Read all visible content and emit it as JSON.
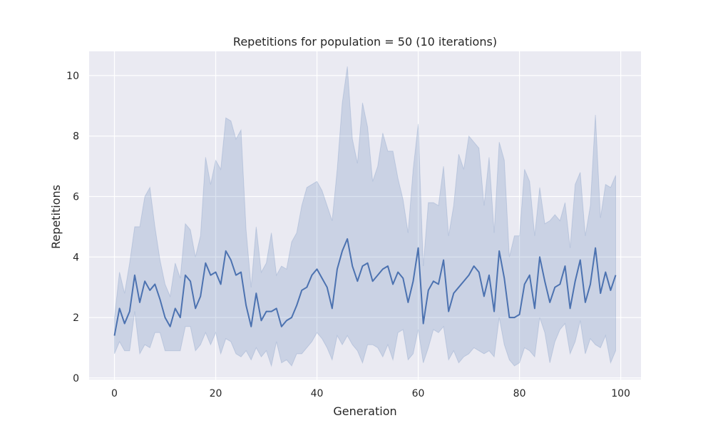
{
  "chart_data": {
    "type": "line",
    "title": "Repetitions for population = 50 (10 iterations)",
    "xlabel": "Generation",
    "ylabel": "Repetitions",
    "xlim": [
      -5,
      104
    ],
    "ylim": [
      -0.05,
      10.8
    ],
    "x_ticks": [
      0,
      20,
      40,
      60,
      80,
      100
    ],
    "y_ticks": [
      0,
      2,
      4,
      6,
      8,
      10
    ],
    "grid": true,
    "colors": {
      "line": "#4c72b0",
      "band": "#4c72b0",
      "background": "#eaeaf2",
      "grid": "#ffffff"
    },
    "series": [
      {
        "x_start": 0,
        "x_step": 1,
        "mean": [
          1.4,
          2.3,
          1.8,
          2.2,
          3.4,
          2.5,
          3.2,
          2.9,
          3.1,
          2.6,
          2.0,
          1.7,
          2.3,
          2.0,
          3.4,
          3.2,
          2.3,
          2.7,
          3.8,
          3.4,
          3.5,
          3.1,
          4.2,
          3.9,
          3.4,
          3.5,
          2.4,
          1.7,
          2.8,
          1.9,
          2.2,
          2.2,
          2.3,
          1.7,
          1.9,
          2.0,
          2.4,
          2.9,
          3.0,
          3.4,
          3.6,
          3.3,
          3.0,
          2.3,
          3.6,
          4.2,
          4.6,
          3.7,
          3.2,
          3.7,
          3.8,
          3.2,
          3.4,
          3.6,
          3.7,
          3.1,
          3.5,
          3.3,
          2.5,
          3.2,
          4.3,
          1.8,
          2.9,
          3.2,
          3.1,
          3.9,
          2.2,
          2.8,
          3.0,
          3.2,
          3.4,
          3.7,
          3.5,
          2.7,
          3.4,
          2.2,
          4.2,
          3.3,
          2.0,
          2.0,
          2.1,
          3.1,
          3.4,
          2.3,
          4.0,
          3.2,
          2.5,
          3.0,
          3.1,
          3.7,
          2.3,
          3.2,
          3.9,
          2.5,
          3.1,
          4.3,
          2.8,
          3.5,
          2.9,
          3.4
        ],
        "upper": [
          2.0,
          3.5,
          2.8,
          3.8,
          5.0,
          5.0,
          6.0,
          6.3,
          5.0,
          3.9,
          3.1,
          2.7,
          3.8,
          3.3,
          5.1,
          4.9,
          4.0,
          4.7,
          7.3,
          6.4,
          7.2,
          6.9,
          8.6,
          8.5,
          7.9,
          8.2,
          4.9,
          3.0,
          5.0,
          3.5,
          3.8,
          4.8,
          3.4,
          3.7,
          3.6,
          4.5,
          4.8,
          5.7,
          6.3,
          6.4,
          6.5,
          6.2,
          5.7,
          5.2,
          6.9,
          9.1,
          10.3,
          7.9,
          7.1,
          9.1,
          8.3,
          6.5,
          7.0,
          8.1,
          7.5,
          7.5,
          6.6,
          5.9,
          4.8,
          6.9,
          8.4,
          3.7,
          5.8,
          5.8,
          5.7,
          7.0,
          4.7,
          5.7,
          7.4,
          6.9,
          8.0,
          7.8,
          7.6,
          5.7,
          7.3,
          4.8,
          7.8,
          7.2,
          4.0,
          4.7,
          4.7,
          6.9,
          6.5,
          4.7,
          6.3,
          5.1,
          5.2,
          5.4,
          5.2,
          5.8,
          4.3,
          6.4,
          6.8,
          4.7,
          5.7,
          8.7,
          5.3,
          6.4,
          6.3,
          6.7
        ],
        "lower": [
          0.8,
          1.2,
          0.9,
          0.9,
          2.2,
          0.8,
          1.1,
          1.0,
          1.5,
          1.5,
          0.9,
          0.9,
          0.9,
          0.9,
          1.7,
          1.7,
          0.9,
          1.1,
          1.5,
          1.1,
          1.5,
          0.8,
          1.3,
          1.2,
          0.8,
          0.7,
          0.9,
          0.6,
          1.0,
          0.7,
          0.9,
          0.4,
          1.2,
          0.5,
          0.6,
          0.4,
          0.8,
          0.8,
          1.0,
          1.2,
          1.5,
          1.3,
          1.0,
          0.6,
          1.4,
          1.1,
          1.4,
          1.1,
          0.9,
          0.5,
          1.1,
          1.1,
          1.0,
          0.7,
          1.1,
          0.6,
          1.5,
          1.6,
          0.6,
          0.8,
          1.6,
          0.5,
          1.0,
          1.6,
          1.5,
          1.7,
          0.6,
          0.9,
          0.5,
          0.7,
          0.8,
          1.0,
          0.9,
          0.8,
          0.9,
          0.7,
          2.0,
          1.1,
          0.6,
          0.4,
          0.5,
          1.0,
          0.9,
          0.7,
          2.0,
          1.5,
          0.5,
          1.2,
          1.6,
          1.8,
          0.8,
          1.2,
          1.9,
          0.8,
          1.3,
          1.1,
          1.0,
          1.4,
          0.5,
          0.9
        ]
      }
    ]
  }
}
